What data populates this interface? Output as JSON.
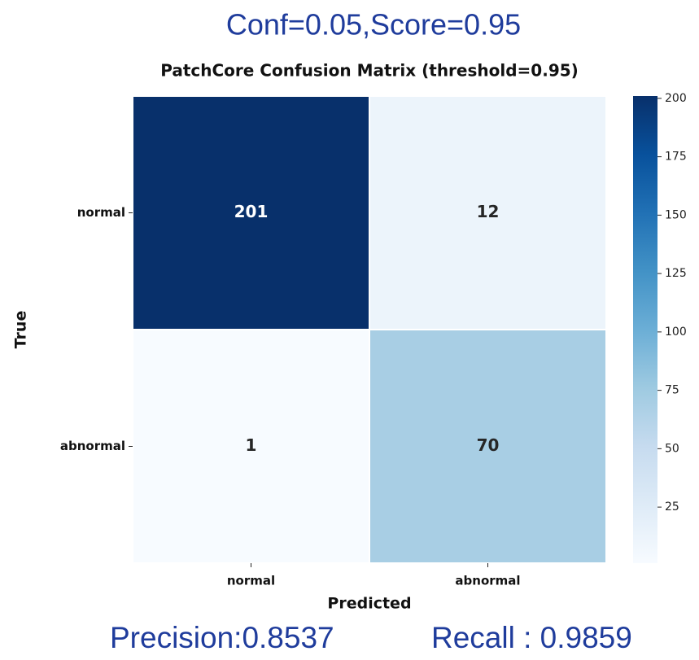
{
  "chart_data": {
    "type": "heatmap",
    "header": "Conf=0.05,Score=0.95",
    "title": "PatchCore Confusion Matrix (threshold=0.95)",
    "x_label": "Predicted",
    "y_label": "True",
    "x_categories": [
      "normal",
      "abnormal"
    ],
    "y_categories": [
      "normal",
      "abnormal"
    ],
    "values": [
      [
        201,
        12
      ],
      [
        1,
        70
      ]
    ],
    "colormap": [
      "#f7fbff",
      "#deebf7",
      "#c6dbef",
      "#9ecae1",
      "#6baed6",
      "#4292c6",
      "#2171b5",
      "#08519c",
      "#08306b"
    ],
    "colorbar_lim": [
      1,
      201
    ],
    "colorbar_ticks": [
      25,
      50,
      75,
      100,
      125,
      150,
      175,
      200
    ],
    "annotations": [
      "Precision:0.8537",
      "Recall : 0.9859"
    ]
  }
}
